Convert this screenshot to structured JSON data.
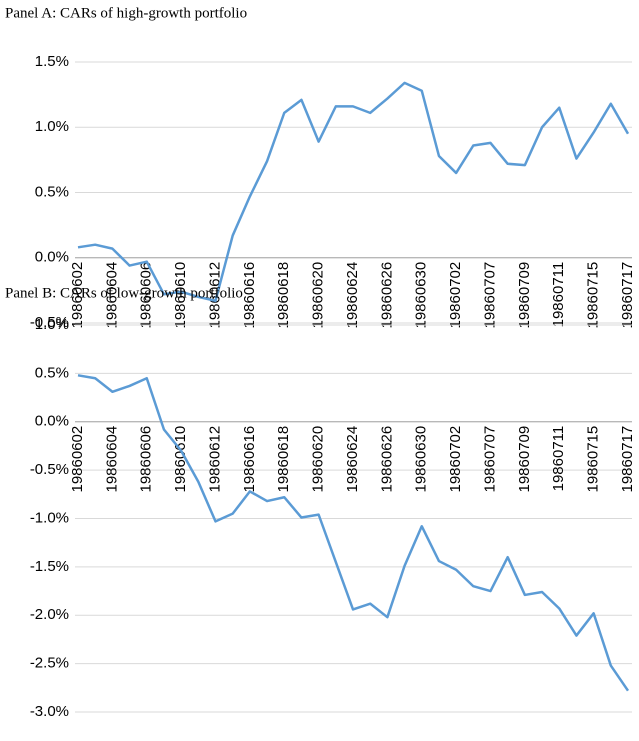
{
  "chart_data": [
    {
      "type": "line",
      "title": "Panel A: CARs of high-growth portfolio",
      "categories": [
        "19860602",
        null,
        "19860604",
        null,
        "19860606",
        null,
        "19860610",
        null,
        "19860612",
        null,
        "19860616",
        null,
        "19860618",
        null,
        "19860620",
        null,
        "19860624",
        null,
        "19860626",
        null,
        "19860630",
        null,
        "19860702",
        null,
        "19860707",
        null,
        "19860709",
        null,
        "19860711",
        null,
        "19860715",
        null,
        "19860717"
      ],
      "series": [
        {
          "color": "#5b9bd5",
          "values": [
            0.08,
            0.1,
            0.07,
            -0.06,
            -0.03,
            -0.28,
            -0.26,
            -0.3,
            -0.33,
            0.17,
            0.47,
            0.74,
            1.11,
            1.21,
            0.89,
            1.16,
            1.16,
            1.11,
            1.22,
            1.34,
            1.28,
            0.78,
            0.65,
            0.86,
            0.88,
            0.72,
            0.71,
            1.0,
            1.15,
            0.76,
            0.96,
            1.18,
            0.95
          ]
        }
      ],
      "ylim": [
        -0.5,
        1.5
      ],
      "yticks": [
        {
          "value": -0.5,
          "label": "-0.5%"
        },
        {
          "value": 0,
          "label": "0.0%"
        },
        {
          "value": 0.5,
          "label": "0.5%"
        },
        {
          "value": 1.0,
          "label": "1.0%"
        },
        {
          "value": 1.5,
          "label": "1.5%"
        }
      ],
      "grid": true
    },
    {
      "type": "line",
      "title": "Panel B: CARs of low-growth portfolio",
      "categories": [
        "19860602",
        null,
        "19860604",
        null,
        "19860606",
        null,
        "19860610",
        null,
        "19860612",
        null,
        "19860616",
        null,
        "19860618",
        null,
        "19860620",
        null,
        "19860624",
        null,
        "19860626",
        null,
        "19860630",
        null,
        "19860702",
        null,
        "19860707",
        null,
        "19860709",
        null,
        "19860711",
        null,
        "19860715",
        null,
        "19860717"
      ],
      "series": [
        {
          "color": "#5b9bd5",
          "values": [
            0.48,
            0.45,
            0.31,
            0.37,
            0.45,
            -0.08,
            -0.3,
            -0.62,
            -1.03,
            -0.95,
            -0.72,
            -0.82,
            -0.78,
            -0.99,
            -0.96,
            -1.45,
            -1.94,
            -1.88,
            -2.02,
            -1.49,
            -1.08,
            -1.44,
            -1.53,
            -1.7,
            -1.75,
            -1.4,
            -1.79,
            -1.76,
            -1.93,
            -2.21,
            -1.98,
            -2.52,
            -2.78
          ]
        }
      ],
      "ylim": [
        -3.0,
        1.0
      ],
      "yticks": [
        {
          "value": -3.0,
          "label": "-3.0%"
        },
        {
          "value": -2.5,
          "label": "-2.5%"
        },
        {
          "value": -2.0,
          "label": "-2.0%"
        },
        {
          "value": -1.5,
          "label": "-1.5%"
        },
        {
          "value": -1.0,
          "label": "-1.0%"
        },
        {
          "value": -0.5,
          "label": "-0.5%"
        },
        {
          "value": 0,
          "label": "0.0%"
        },
        {
          "value": 0.5,
          "label": "0.5%"
        },
        {
          "value": 1.0,
          "label": "1.0%"
        }
      ],
      "grid": true
    }
  ]
}
